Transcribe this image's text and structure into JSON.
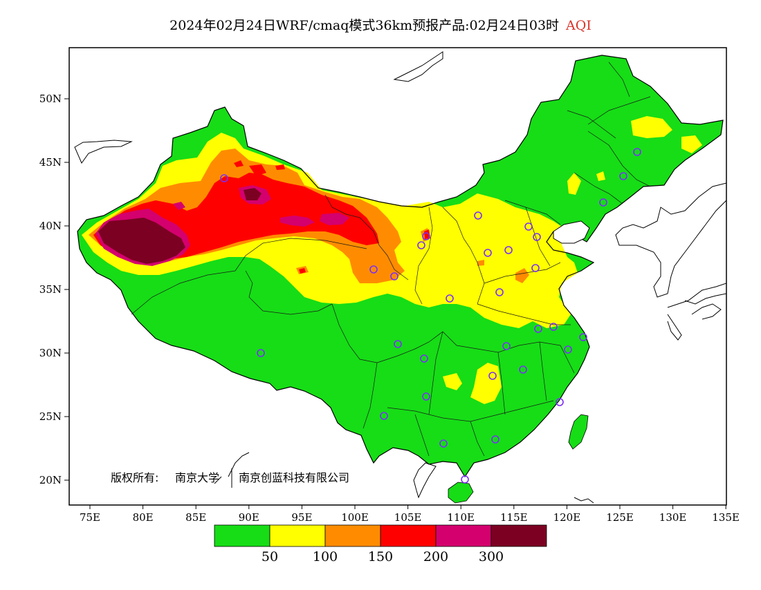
{
  "title": {
    "main": "2024年02月24日WRF/cmaq模式36km预报产品:02月24日03时",
    "variable": "AQI",
    "variable_color": "#d9342b"
  },
  "axes": {
    "x_ticks": [
      "75E",
      "80E",
      "85E",
      "90E",
      "95E",
      "100E",
      "105E",
      "110E",
      "115E",
      "120E",
      "125E",
      "130E",
      "135E"
    ],
    "y_ticks": [
      "50N",
      "45N",
      "40N",
      "35N",
      "30N",
      "25N",
      "20N"
    ]
  },
  "copyright": {
    "label": "版权所有:",
    "org1": "南京大学",
    "org2": "南京创蓝科技有限公司"
  },
  "legend": {
    "colors": [
      "#16dd16",
      "#ffff00",
      "#ff8c00",
      "#ff0000",
      "#d4006e",
      "#7c0022"
    ],
    "labels": [
      "50",
      "100",
      "150",
      "200",
      "300"
    ]
  },
  "colors": {
    "good": "#16dd16",
    "moderate": "#ffff00",
    "usg": "#ff8c00",
    "unhealthy": "#ff0000",
    "very_unhealthy": "#d4006e",
    "hazardous": "#7c0022",
    "station_marker": "#7b2ff7"
  }
}
